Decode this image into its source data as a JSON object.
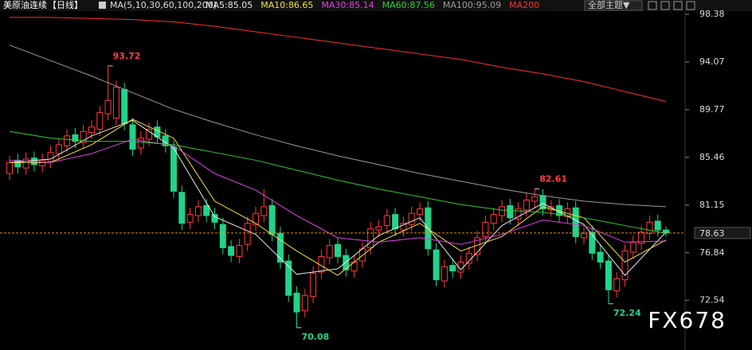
{
  "header": {
    "symbol": "美原油连续",
    "period": "【日线】",
    "ma_params": "MA(5,10,30,60,100,200)",
    "theme_button": "全部主题▼"
  },
  "watermark": "FX678",
  "chart_data": {
    "type": "candlestick",
    "up_color": "#ff3b3b",
    "down_color": "#22d38a",
    "ylim": [
      68.06,
      98.81
    ],
    "yticks": [
      98.38,
      94.07,
      89.77,
      85.46,
      81.15,
      76.84,
      72.54
    ],
    "last_price_line": true,
    "open": [
      84.0,
      85.2,
      84.5,
      85.4,
      84.7,
      85.1,
      85.8,
      86.5,
      87.5,
      86.8,
      87.7,
      88.0,
      89.4,
      89.0,
      91.6,
      88.4,
      86.3,
      87.1,
      88.2,
      87.4,
      86.4,
      82.3,
      79.6,
      80.2,
      81.1,
      80.3,
      79.4,
      77.4,
      76.5,
      77.6,
      79.4,
      80.2,
      81.1,
      78.6,
      76.1,
      73.2,
      71.6,
      72.9,
      75.1,
      76.4,
      77.6,
      76.6,
      75.2,
      76.1,
      77.3,
      78.9,
      79.3,
      80.3,
      78.9,
      79.4,
      80.3,
      80.9,
      77.1,
      74.3,
      75.7,
      75.1,
      75.9,
      76.7,
      78.3,
      79.5,
      80.2,
      81.1,
      79.9,
      80.7,
      81.5,
      82.0,
      80.7,
      81.1,
      80.1,
      80.9,
      78.2,
      78.7,
      76.9,
      76.1,
      73.4,
      74.4,
      76.9,
      77.7,
      78.6,
      79.7,
      78.9
    ],
    "high": [
      85.6,
      85.8,
      85.9,
      86.0,
      85.8,
      86.5,
      87.2,
      88.0,
      88.1,
      88.4,
      88.8,
      90.1,
      93.72,
      92.4,
      92.2,
      89.0,
      87.8,
      88.6,
      88.8,
      88.0,
      87.0,
      82.9,
      80.9,
      81.6,
      81.7,
      80.9,
      80.0,
      78.0,
      78.1,
      80.1,
      81.0,
      82.6,
      81.7,
      79.2,
      76.7,
      73.8,
      73.6,
      75.6,
      77.1,
      78.1,
      78.2,
      77.2,
      76.6,
      77.8,
      79.6,
      79.8,
      80.8,
      80.9,
      80.1,
      81.0,
      81.4,
      81.5,
      77.7,
      76.2,
      76.3,
      76.6,
      77.4,
      78.8,
      80.2,
      80.9,
      81.6,
      81.7,
      81.4,
      82.2,
      82.61,
      82.6,
      81.6,
      81.7,
      81.4,
      81.5,
      79.2,
      79.3,
      77.5,
      76.7,
      75.1,
      77.6,
      78.4,
      79.3,
      80.2,
      80.3,
      79.2
    ],
    "low": [
      83.4,
      84.0,
      83.9,
      84.2,
      84.1,
      84.5,
      85.2,
      85.9,
      86.3,
      86.2,
      87.1,
      87.4,
      88.8,
      88.4,
      87.9,
      85.6,
      85.7,
      86.5,
      86.7,
      85.9,
      81.8,
      78.9,
      79.0,
      79.6,
      79.6,
      79.0,
      76.7,
      76.0,
      75.9,
      77.0,
      78.8,
      79.6,
      77.9,
      75.4,
      72.4,
      70.08,
      71.0,
      72.3,
      74.5,
      75.8,
      75.9,
      74.7,
      74.6,
      75.5,
      76.7,
      78.3,
      78.7,
      78.4,
      78.3,
      78.8,
      79.7,
      76.6,
      73.8,
      73.7,
      74.6,
      74.5,
      75.3,
      76.1,
      77.7,
      78.9,
      79.6,
      79.4,
      79.3,
      80.1,
      80.9,
      80.2,
      80.1,
      79.6,
      79.5,
      77.7,
      77.6,
      76.2,
      75.4,
      72.24,
      72.8,
      73.8,
      76.3,
      77.1,
      78.0,
      78.3,
      78.3
    ],
    "close": [
      85.0,
      84.6,
      85.3,
      84.8,
      85.2,
      85.9,
      86.6,
      87.4,
      86.9,
      87.8,
      88.2,
      89.5,
      90.6,
      91.8,
      88.5,
      86.2,
      87.2,
      88.0,
      87.3,
      86.5,
      82.4,
      79.5,
      80.3,
      81.0,
      80.2,
      79.6,
      77.3,
      76.6,
      77.5,
      79.5,
      80.4,
      81.0,
      78.5,
      76.0,
      73.0,
      71.5,
      73.0,
      75.0,
      76.5,
      77.5,
      76.5,
      75.3,
      76.0,
      77.2,
      79.0,
      79.2,
      80.2,
      79.0,
      79.5,
      80.4,
      80.8,
      77.2,
      74.4,
      75.6,
      75.2,
      76.0,
      76.8,
      78.2,
      79.6,
      80.3,
      81.0,
      80.0,
      80.8,
      81.6,
      81.9,
      80.8,
      81.0,
      80.2,
      80.8,
      78.3,
      78.6,
      76.8,
      76.0,
      73.5,
      74.5,
      77.0,
      77.8,
      78.7,
      79.6,
      78.9,
      78.63
    ],
    "ma": {
      "x": [
        0,
        5,
        10,
        15,
        20,
        25,
        30,
        35,
        40,
        45,
        50,
        55,
        60,
        65,
        70,
        75,
        80
      ],
      "series": [
        {
          "name": "MA5:85.05",
          "color": "#e8e8e8",
          "values": [
            85.0,
            85.3,
            87.4,
            88.8,
            86.3,
            80.1,
            78.5,
            74.9,
            75.4,
            78.4,
            80.0,
            75.3,
            79.3,
            81.3,
            79.4,
            74.8,
            78.7
          ]
        },
        {
          "name": "MA10:86.65",
          "color": "#f2e23c",
          "values": [
            85.0,
            85.0,
            86.6,
            88.9,
            87.2,
            81.5,
            79.5,
            77.0,
            74.8,
            77.8,
            79.5,
            77.0,
            78.3,
            81.0,
            80.0,
            76.0,
            78.0
          ]
        },
        {
          "name": "MA30:85.14",
          "color": "#e040e0",
          "values": [
            85.2,
            85.0,
            85.8,
            87.1,
            86.5,
            84.0,
            82.5,
            80.2,
            78.2,
            77.8,
            78.2,
            77.6,
            78.5,
            79.8,
            79.3,
            77.8,
            77.9
          ]
        },
        {
          "name": "MA60:87.56",
          "color": "#33cc33",
          "values": [
            87.8,
            87.2,
            86.9,
            86.9,
            86.6,
            85.9,
            85.2,
            84.3,
            83.4,
            82.6,
            81.9,
            81.2,
            80.7,
            80.5,
            80.0,
            79.3,
            78.6
          ]
        },
        {
          "name": "MA100:95.09",
          "color": "#9a9a9a",
          "values": [
            95.6,
            94.2,
            92.8,
            91.3,
            89.8,
            88.6,
            87.5,
            86.5,
            85.6,
            84.8,
            84.0,
            83.3,
            82.6,
            82.0,
            81.5,
            81.2,
            81.0
          ]
        },
        {
          "name": "MA200",
          "color": "#ff3030",
          "values": [
            98.1,
            98.1,
            98.0,
            97.9,
            97.7,
            97.3,
            96.8,
            96.3,
            95.8,
            95.3,
            94.8,
            94.3,
            93.6,
            93.0,
            92.3,
            91.4,
            90.5
          ]
        }
      ]
    }
  }
}
